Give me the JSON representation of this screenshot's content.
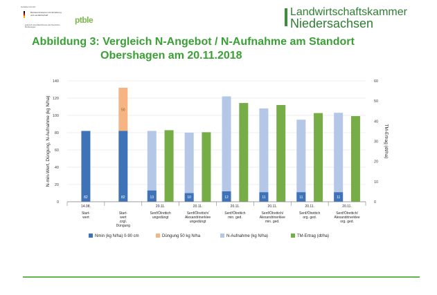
{
  "header": {
    "bund_top": "Gefördert durch:",
    "ministry": "Bundesministerium für Ernährung und Landwirtschaft",
    "ministry_sub": "aufgrund eines Beschlusses des Deutschen Bundestages",
    "ptble": "ptble",
    "lwk_line1": "Landwirtschaftskammer",
    "lwk_line2": "Niedersachsen"
  },
  "title": {
    "line1": "Abbildung 3: Vergleich N-Angebot / N-Aufnahme am Standort",
    "line2": "Obershagen am 20.11.2018"
  },
  "colors": {
    "nmin": "#3f73b7",
    "duengung": "#f5b482",
    "naufnahme": "#b4c7e7",
    "tm": "#77ad47",
    "accent_green": "#3aa035"
  },
  "chart_data": {
    "type": "bar",
    "ylabel": "N-min-Wert, Düngung, N-Aufnahme (kg N/ha)",
    "y2label": "TM-Ertrag (dt/ha)",
    "ylim": [
      0,
      140
    ],
    "y2lim": [
      0,
      60
    ],
    "yticks": [
      "0",
      "20",
      "40",
      "60",
      "80",
      "100",
      "120",
      "140"
    ],
    "y2ticks": [
      "0",
      "10",
      "20",
      "30",
      "40",
      "50",
      "60"
    ],
    "legend_position": "bottom",
    "groups": [
      {
        "date": "14.08.",
        "label": [
          "Start-",
          "wert"
        ],
        "nmin": 82,
        "nmin_label": "82"
      },
      {
        "date": "",
        "label": [
          "Start-",
          "wert",
          "zzgl.",
          "Düngung"
        ],
        "nmin": 82,
        "nmin_label": "82",
        "duengung": 50,
        "duengung_label": "50"
      },
      {
        "date": "20.11.",
        "label": [
          "Senf/Ölrettich",
          "ungedüngt"
        ],
        "nmin": 13,
        "nmin_label": "13",
        "naufnahme": 82,
        "tm": 35.5
      },
      {
        "date": "20.11.",
        "label": [
          "Senf/Ölrettich/",
          "Alexandrinerklee",
          "ungedüngt"
        ],
        "nmin": 10,
        "nmin_label": "10",
        "naufnahme": 80,
        "tm": 34.5
      },
      {
        "date": "20.11.",
        "label": [
          "Senf/Ölrettich",
          "min. ged."
        ],
        "nmin": 12,
        "nmin_label": "12",
        "naufnahme": 122,
        "tm": 49
      },
      {
        "date": "20.11.",
        "label": [
          "Senf/Ölrettich/",
          "Alexandrinerklee",
          "min. ged."
        ],
        "nmin": 11,
        "nmin_label": "11",
        "naufnahme": 108,
        "tm": 48
      },
      {
        "date": "20.11.",
        "label": [
          "Senf/Ölrettich",
          "org. ged."
        ],
        "nmin": 11,
        "nmin_label": "11",
        "naufnahme": 95,
        "tm": 44
      },
      {
        "date": "20.11.",
        "label": [
          "Senf/Ölrettich/",
          "Alexandrinerklee",
          "org. ged."
        ],
        "nmin": 11,
        "nmin_label": "11",
        "naufnahme": 103,
        "tm": 42.5
      }
    ],
    "legend": [
      {
        "key": "nmin",
        "label": "Nmin (kg N/ha) 0-90 cm"
      },
      {
        "key": "duengung",
        "label": "Düngung 50 kg N/ha"
      },
      {
        "key": "naufnahme",
        "label": "N-Aufnahme (kg N/ha)"
      },
      {
        "key": "tm",
        "label": "TM-Ertrag (dt/ha)"
      }
    ]
  }
}
